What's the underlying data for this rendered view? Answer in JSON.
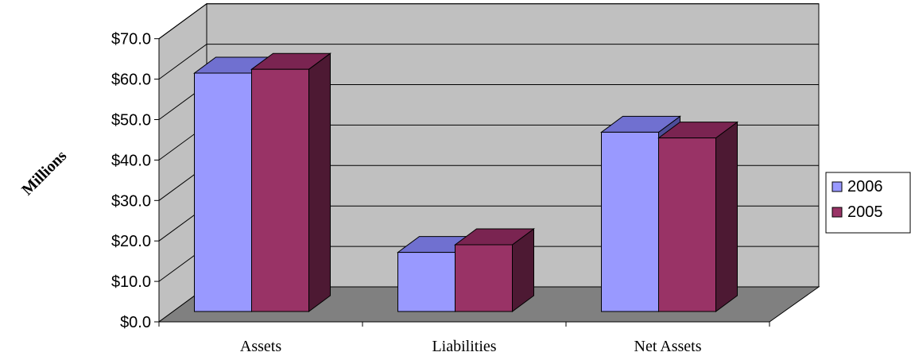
{
  "chart_data": {
    "type": "bar",
    "title": "",
    "xlabel": "",
    "ylabel": "Millions",
    "ylim": [
      0,
      70
    ],
    "ytick_labels": [
      "$0.0",
      "$10.0",
      "$20.0",
      "$30.0",
      "$40.0",
      "$50.0",
      "$60.0",
      "$70.0"
    ],
    "categories": [
      "Assets",
      "Liabilities",
      "Net Assets"
    ],
    "series": [
      {
        "name": "2006",
        "values": [
          62.5,
          15.5,
          47.0
        ]
      },
      {
        "name": "2005",
        "values": [
          63.5,
          17.5,
          45.5
        ]
      }
    ],
    "grid": true,
    "three_d": true,
    "legend_position": "right"
  },
  "colors": {
    "back_wall": "#c0c0c0",
    "side_wall": "#c0c0c0",
    "floor": "#808080",
    "s2006_front": "#9999ff",
    "s2006_top": "#7070d0",
    "s2006_side": "#4d4d99",
    "s2005_front": "#993366",
    "s2005_top": "#7a2451",
    "s2005_side": "#4d1933"
  }
}
